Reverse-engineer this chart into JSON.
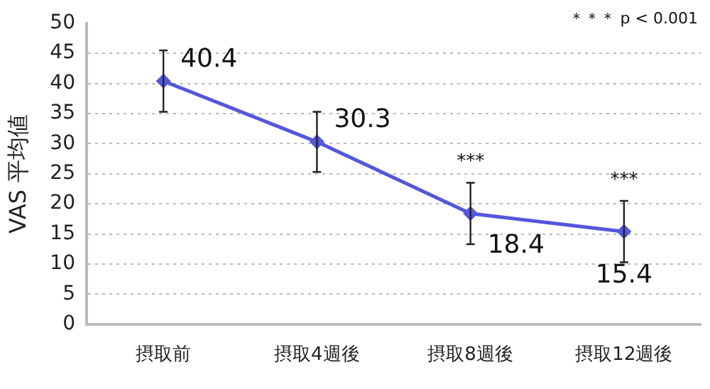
{
  "chart_data": {
    "type": "line",
    "ylabel": "VAS 平均値",
    "categories": [
      "摂取前",
      "摂取4週後",
      "摂取8週後",
      "摂取12週後"
    ],
    "series": [
      {
        "color": "#5555dd",
        "values": [
          40.4,
          30.3,
          18.4,
          15.4
        ],
        "errors": [
          5.1,
          5,
          5.1,
          5.1
        ]
      }
    ],
    "ylim": [
      0,
      50
    ],
    "yticks": [
      0,
      5,
      10,
      15,
      20,
      25,
      30,
      35,
      40,
      45,
      50
    ],
    "grid": "y",
    "marker": "diamond",
    "line_style": "solid",
    "data_labels": true,
    "legend": false,
    "annotations": [
      "＊＊＊ p < 0.001",
      "***",
      "***"
    ]
  }
}
